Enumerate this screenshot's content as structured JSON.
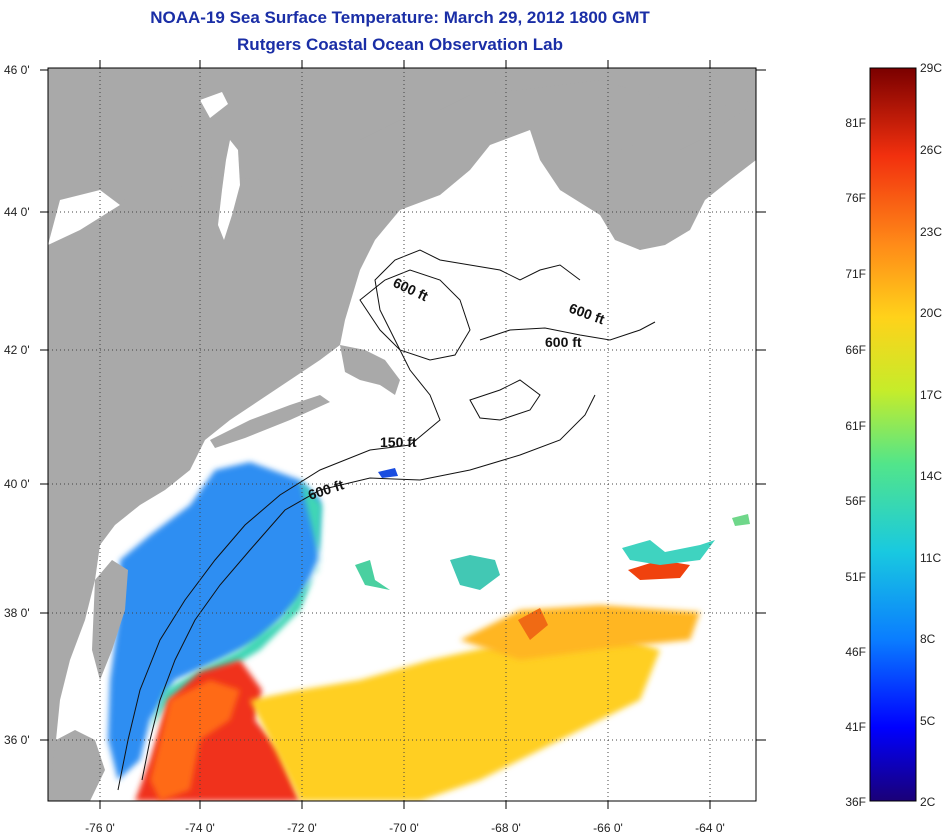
{
  "title": "NOAA-19 Sea Surface Temperature:  March 29, 2012 1800 GMT",
  "subtitle": "Rutgers Coastal Ocean Observation Lab",
  "map": {
    "lat_labels": [
      "46 0'",
      "44 0'",
      "42 0'",
      "40 0'",
      "38 0'",
      "36 0'"
    ],
    "lon_labels": [
      "-76 0'",
      "-74 0'",
      "-72 0'",
      "-70 0'",
      "-68 0'",
      "-66 0'",
      "-64 0'"
    ],
    "contour_labels": [
      "600 ft",
      "600 ft",
      "600 ft",
      "150 ft",
      "600 ft"
    ],
    "colors": {
      "land": "#a9a9a9",
      "grid": "#555555"
    }
  },
  "colorbar": {
    "celsius_labels": [
      "29C",
      "26C",
      "23C",
      "20C",
      "17C",
      "14C",
      "11C",
      "8C",
      "5C",
      "2C"
    ],
    "fahrenheit_labels": [
      "81F",
      "76F",
      "71F",
      "66F",
      "61F",
      "56F",
      "51F",
      "46F",
      "41F",
      "36F"
    ],
    "colors": [
      "#1a0077",
      "#0000ff",
      "#0a7dff",
      "#19c9e0",
      "#52e58a",
      "#c6ec2a",
      "#ffd21a",
      "#ff8a18",
      "#f2300e",
      "#7a0000"
    ]
  }
}
